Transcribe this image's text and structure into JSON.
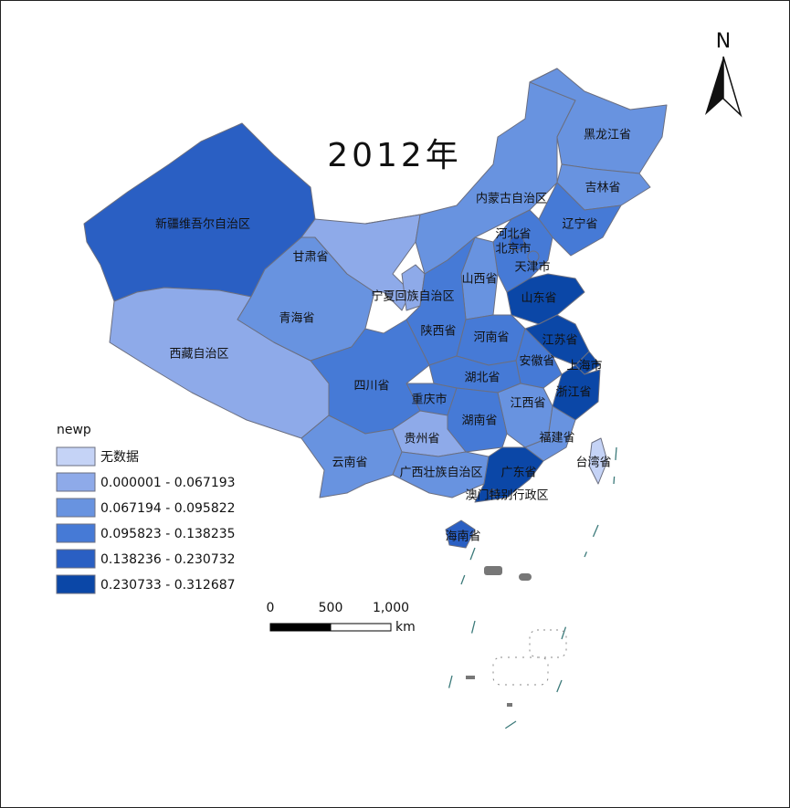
{
  "map": {
    "title": "2012年",
    "north": "N",
    "legend": {
      "title": "newp",
      "items": [
        {
          "label": "无数据",
          "color": "#c5d3f6"
        },
        {
          "label": "0.000001 - 0.067193",
          "color": "#8eaae9"
        },
        {
          "label": "0.067194 - 0.095822",
          "color": "#6893e0"
        },
        {
          "label": "0.095823 - 0.138235",
          "color": "#467ad6"
        },
        {
          "label": "0.138236 - 0.230732",
          "color": "#2a5fc3"
        },
        {
          "label": "0.230733 - 0.312687",
          "color": "#0b47a7"
        }
      ]
    },
    "scale_bar": {
      "labels": [
        "0",
        "500",
        "1,000"
      ],
      "unit": "km"
    },
    "provinces": [
      {
        "name": "新疆维吾尔自治区",
        "color": "#2a5fc3"
      },
      {
        "name": "西藏自治区",
        "color": "#8eaae9"
      },
      {
        "name": "青海省",
        "color": "#6893e0"
      },
      {
        "name": "甘肃省",
        "color": "#8eaae9"
      },
      {
        "name": "内蒙古自治区",
        "color": "#6893e0"
      },
      {
        "name": "黑龙江省",
        "color": "#6893e0"
      },
      {
        "name": "吉林省",
        "color": "#6893e0"
      },
      {
        "name": "辽宁省",
        "color": "#467ad6"
      },
      {
        "name": "河北省",
        "color": "#467ad6"
      },
      {
        "name": "北京市",
        "color": "#2a5fc3"
      },
      {
        "name": "天津市",
        "color": "#467ad6"
      },
      {
        "name": "山西省",
        "color": "#6893e0"
      },
      {
        "name": "宁夏回族自治区",
        "color": "#8eaae9"
      },
      {
        "name": "山东省",
        "color": "#0b47a7"
      },
      {
        "name": "陕西省",
        "color": "#467ad6"
      },
      {
        "name": "河南省",
        "color": "#467ad6"
      },
      {
        "name": "江苏省",
        "color": "#0b47a7"
      },
      {
        "name": "安徽省",
        "color": "#467ad6"
      },
      {
        "name": "上海市",
        "color": "#0b47a7"
      },
      {
        "name": "湖北省",
        "color": "#467ad6"
      },
      {
        "name": "浙江省",
        "color": "#0b47a7"
      },
      {
        "name": "四川省",
        "color": "#467ad6"
      },
      {
        "name": "重庆市",
        "color": "#467ad6"
      },
      {
        "name": "江西省",
        "color": "#6893e0"
      },
      {
        "name": "湖南省",
        "color": "#467ad6"
      },
      {
        "name": "福建省",
        "color": "#6893e0"
      },
      {
        "name": "贵州省",
        "color": "#8eaae9"
      },
      {
        "name": "云南省",
        "color": "#6893e0"
      },
      {
        "name": "广西壮族自治区",
        "color": "#6893e0"
      },
      {
        "name": "广东省",
        "color": "#0b47a7"
      },
      {
        "name": "台湾省",
        "color": "#c5d3f6"
      },
      {
        "name": "澳门特别行政区",
        "color": "#0b47a7"
      },
      {
        "name": "海南省",
        "color": "#2a5fc3"
      }
    ]
  }
}
